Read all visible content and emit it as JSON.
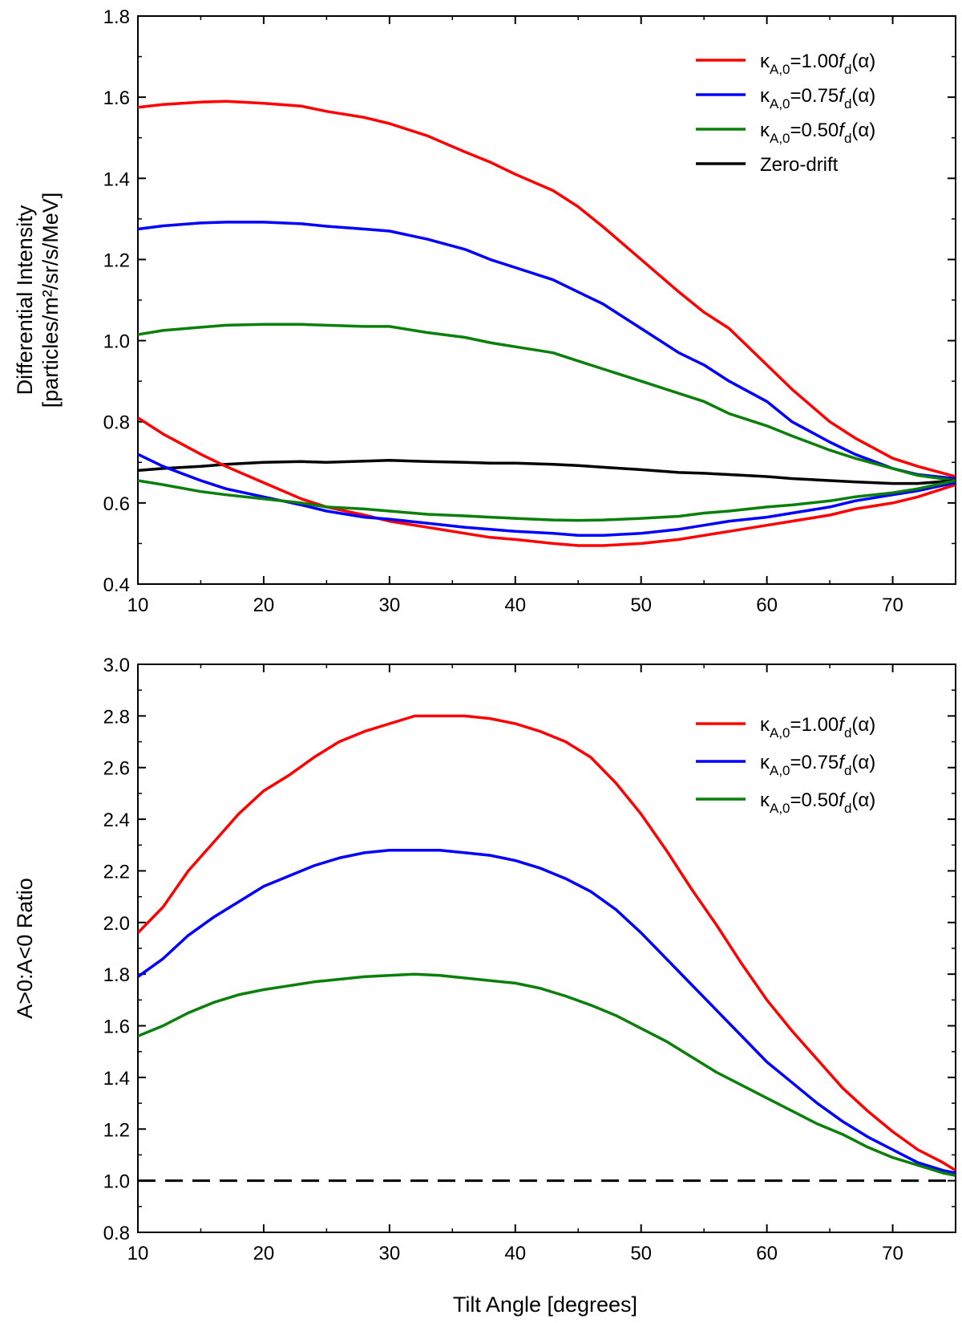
{
  "xlabel": "Tilt Angle [degrees]",
  "chart_data": [
    {
      "type": "line",
      "panel": "top",
      "title": "",
      "xlabel": "Tilt Angle [degrees]",
      "ylabel_line1": "Differential Intensity",
      "ylabel_line2": "[particles/m²/sr/s/MeV]",
      "xlim": [
        10,
        75
      ],
      "ylim": [
        0.4,
        1.8
      ],
      "xticks": [
        10,
        20,
        30,
        40,
        50,
        60,
        70
      ],
      "yticks": [
        0.4,
        0.6,
        0.8,
        1.0,
        1.2,
        1.4,
        1.6,
        1.8
      ],
      "ytick_labels": [
        "0.4",
        "0.6",
        "0.8",
        "1.0",
        "1.2",
        "1.4",
        "1.6",
        "1.8"
      ],
      "legend_position": "top-right",
      "grid": false,
      "series": [
        {
          "name": "κA,0=1.00fd(α)",
          "legend_main": "κ",
          "legend_sub": "A,0",
          "legend_eq": "=1.00",
          "legend_f": "f",
          "legend_fsub": "d",
          "legend_tail": "(α)",
          "color": "#ff0000",
          "in_legend": true,
          "x": [
            10,
            12,
            15,
            17,
            20,
            23,
            25,
            28,
            30,
            33,
            36,
            38,
            40,
            43,
            45,
            47,
            50,
            53,
            55,
            57,
            60,
            62,
            65,
            67,
            70,
            72,
            75
          ],
          "y": [
            1.575,
            1.582,
            1.588,
            1.59,
            1.585,
            1.578,
            1.565,
            1.55,
            1.535,
            1.505,
            1.465,
            1.44,
            1.41,
            1.37,
            1.33,
            1.28,
            1.2,
            1.12,
            1.07,
            1.03,
            0.94,
            0.88,
            0.8,
            0.76,
            0.71,
            0.69,
            0.665
          ]
        },
        {
          "name": "κA,0=0.75fd(α)",
          "legend_main": "κ",
          "legend_sub": "A,0",
          "legend_eq": "=0.75",
          "legend_f": "f",
          "legend_fsub": "d",
          "legend_tail": "(α)",
          "color": "#0000ff",
          "in_legend": true,
          "x": [
            10,
            12,
            15,
            17,
            20,
            23,
            25,
            28,
            30,
            33,
            36,
            38,
            40,
            43,
            45,
            47,
            50,
            53,
            55,
            57,
            60,
            62,
            65,
            67,
            70,
            72,
            75
          ],
          "y": [
            1.275,
            1.283,
            1.29,
            1.292,
            1.292,
            1.288,
            1.282,
            1.275,
            1.27,
            1.25,
            1.225,
            1.2,
            1.18,
            1.15,
            1.12,
            1.09,
            1.03,
            0.97,
            0.94,
            0.9,
            0.85,
            0.8,
            0.75,
            0.72,
            0.685,
            0.67,
            0.66
          ]
        },
        {
          "name": "κA,0=0.50fd(α)",
          "legend_main": "κ",
          "legend_sub": "A,0",
          "legend_eq": "=0.50",
          "legend_f": "f",
          "legend_fsub": "d",
          "legend_tail": "(α)",
          "color": "#0a7f0a",
          "in_legend": true,
          "x": [
            10,
            12,
            15,
            17,
            20,
            23,
            25,
            28,
            30,
            33,
            36,
            38,
            40,
            43,
            45,
            47,
            50,
            53,
            55,
            57,
            60,
            62,
            65,
            67,
            70,
            72,
            75
          ],
          "y": [
            1.015,
            1.025,
            1.033,
            1.038,
            1.04,
            1.04,
            1.038,
            1.035,
            1.035,
            1.02,
            1.008,
            0.995,
            0.985,
            0.97,
            0.95,
            0.93,
            0.9,
            0.87,
            0.85,
            0.82,
            0.79,
            0.765,
            0.73,
            0.71,
            0.685,
            0.668,
            0.655
          ]
        },
        {
          "name": "Zero-drift",
          "legend_text": "Zero-drift",
          "color": "#000000",
          "in_legend": true,
          "x": [
            10,
            12,
            15,
            17,
            20,
            23,
            25,
            28,
            30,
            33,
            36,
            38,
            40,
            43,
            45,
            47,
            50,
            53,
            55,
            57,
            60,
            62,
            65,
            67,
            70,
            72,
            75
          ],
          "y": [
            0.68,
            0.685,
            0.69,
            0.695,
            0.7,
            0.702,
            0.7,
            0.703,
            0.705,
            0.702,
            0.7,
            0.698,
            0.698,
            0.695,
            0.692,
            0.688,
            0.682,
            0.675,
            0.673,
            0.67,
            0.665,
            0.66,
            0.655,
            0.652,
            0.648,
            0.648,
            0.655
          ]
        },
        {
          "name": "κA,0=1.00fd(α) lower",
          "color": "#ff0000",
          "in_legend": false,
          "x": [
            10,
            12,
            15,
            17,
            20,
            23,
            25,
            28,
            30,
            33,
            36,
            38,
            40,
            43,
            45,
            47,
            50,
            53,
            55,
            57,
            60,
            62,
            65,
            67,
            70,
            72,
            75
          ],
          "y": [
            0.81,
            0.77,
            0.72,
            0.69,
            0.65,
            0.61,
            0.59,
            0.57,
            0.555,
            0.54,
            0.525,
            0.515,
            0.51,
            0.5,
            0.495,
            0.495,
            0.5,
            0.51,
            0.52,
            0.53,
            0.545,
            0.555,
            0.57,
            0.585,
            0.6,
            0.615,
            0.645
          ]
        },
        {
          "name": "κA,0=0.75fd(α) lower",
          "color": "#0000ff",
          "in_legend": false,
          "x": [
            10,
            12,
            15,
            17,
            20,
            23,
            25,
            28,
            30,
            33,
            36,
            38,
            40,
            43,
            45,
            47,
            50,
            53,
            55,
            57,
            60,
            62,
            65,
            67,
            70,
            72,
            75
          ],
          "y": [
            0.72,
            0.69,
            0.655,
            0.635,
            0.615,
            0.595,
            0.58,
            0.565,
            0.56,
            0.55,
            0.54,
            0.535,
            0.53,
            0.525,
            0.52,
            0.52,
            0.525,
            0.535,
            0.545,
            0.555,
            0.565,
            0.575,
            0.59,
            0.605,
            0.62,
            0.63,
            0.65
          ]
        },
        {
          "name": "κA,0=0.50fd(α) lower",
          "color": "#0a7f0a",
          "in_legend": false,
          "x": [
            10,
            12,
            15,
            17,
            20,
            23,
            25,
            28,
            30,
            33,
            36,
            38,
            40,
            43,
            45,
            47,
            50,
            53,
            55,
            57,
            60,
            62,
            65,
            67,
            70,
            72,
            75
          ],
          "y": [
            0.655,
            0.645,
            0.628,
            0.62,
            0.61,
            0.6,
            0.59,
            0.585,
            0.58,
            0.572,
            0.568,
            0.565,
            0.562,
            0.558,
            0.557,
            0.558,
            0.562,
            0.567,
            0.575,
            0.58,
            0.59,
            0.595,
            0.605,
            0.615,
            0.625,
            0.635,
            0.655
          ]
        }
      ]
    },
    {
      "type": "line",
      "panel": "bottom",
      "title": "",
      "xlabel": "Tilt Angle [degrees]",
      "ylabel_line1": "A>0:A<0 Ratio",
      "xlim": [
        10,
        75
      ],
      "ylim": [
        0.8,
        3.0
      ],
      "xticks": [
        10,
        20,
        30,
        40,
        50,
        60,
        70
      ],
      "yticks": [
        0.8,
        1.0,
        1.2,
        1.4,
        1.6,
        1.8,
        2.0,
        2.2,
        2.4,
        2.6,
        2.8,
        3.0
      ],
      "ytick_labels": [
        "0.8",
        "1.0",
        "1.2",
        "1.4",
        "1.6",
        "1.8",
        "2.0",
        "2.2",
        "2.4",
        "2.6",
        "2.8",
        "3.0"
      ],
      "legend_position": "top-right",
      "grid": false,
      "reference_line": {
        "y": 1.0,
        "style": "dashed",
        "color": "#000000"
      },
      "series": [
        {
          "name": "κA,0=1.00fd(α)",
          "legend_main": "κ",
          "legend_sub": "A,0",
          "legend_eq": "=1.00",
          "legend_f": "f",
          "legend_fsub": "d",
          "legend_tail": "(α)",
          "color": "#ff0000",
          "in_legend": true,
          "x": [
            10,
            12,
            14,
            16,
            18,
            20,
            22,
            24,
            26,
            28,
            30,
            32,
            34,
            36,
            38,
            40,
            42,
            44,
            46,
            48,
            50,
            52,
            54,
            56,
            58,
            60,
            62,
            64,
            66,
            68,
            70,
            72,
            74,
            75
          ],
          "y": [
            1.96,
            2.06,
            2.2,
            2.31,
            2.42,
            2.51,
            2.57,
            2.64,
            2.7,
            2.74,
            2.77,
            2.8,
            2.8,
            2.8,
            2.79,
            2.77,
            2.74,
            2.7,
            2.64,
            2.54,
            2.42,
            2.28,
            2.13,
            1.99,
            1.84,
            1.7,
            1.58,
            1.47,
            1.36,
            1.27,
            1.19,
            1.12,
            1.07,
            1.04
          ]
        },
        {
          "name": "κA,0=0.75fd(α)",
          "legend_main": "κ",
          "legend_sub": "A,0",
          "legend_eq": "=0.75",
          "legend_f": "f",
          "legend_fsub": "d",
          "legend_tail": "(α)",
          "color": "#0000ff",
          "in_legend": true,
          "x": [
            10,
            12,
            14,
            16,
            18,
            20,
            22,
            24,
            26,
            28,
            30,
            32,
            34,
            36,
            38,
            40,
            42,
            44,
            46,
            48,
            50,
            52,
            54,
            56,
            58,
            60,
            62,
            64,
            66,
            68,
            70,
            72,
            74,
            75
          ],
          "y": [
            1.79,
            1.86,
            1.95,
            2.02,
            2.08,
            2.14,
            2.18,
            2.22,
            2.25,
            2.27,
            2.28,
            2.28,
            2.28,
            2.27,
            2.26,
            2.24,
            2.21,
            2.17,
            2.12,
            2.05,
            1.96,
            1.86,
            1.76,
            1.66,
            1.56,
            1.46,
            1.38,
            1.3,
            1.23,
            1.17,
            1.12,
            1.07,
            1.04,
            1.03
          ]
        },
        {
          "name": "κA,0=0.50fd(α)",
          "legend_main": "κ",
          "legend_sub": "A,0",
          "legend_eq": "=0.50",
          "legend_f": "f",
          "legend_fsub": "d",
          "legend_tail": "(α)",
          "color": "#0a7f0a",
          "in_legend": true,
          "x": [
            10,
            12,
            14,
            16,
            18,
            20,
            22,
            24,
            26,
            28,
            30,
            32,
            34,
            36,
            38,
            40,
            42,
            44,
            46,
            48,
            50,
            52,
            54,
            56,
            58,
            60,
            62,
            64,
            66,
            68,
            70,
            72,
            74,
            75
          ],
          "y": [
            1.56,
            1.6,
            1.65,
            1.69,
            1.72,
            1.74,
            1.755,
            1.77,
            1.78,
            1.79,
            1.795,
            1.8,
            1.795,
            1.785,
            1.775,
            1.765,
            1.745,
            1.715,
            1.68,
            1.64,
            1.59,
            1.54,
            1.48,
            1.42,
            1.37,
            1.32,
            1.27,
            1.22,
            1.18,
            1.13,
            1.09,
            1.06,
            1.03,
            1.02
          ]
        }
      ]
    }
  ]
}
